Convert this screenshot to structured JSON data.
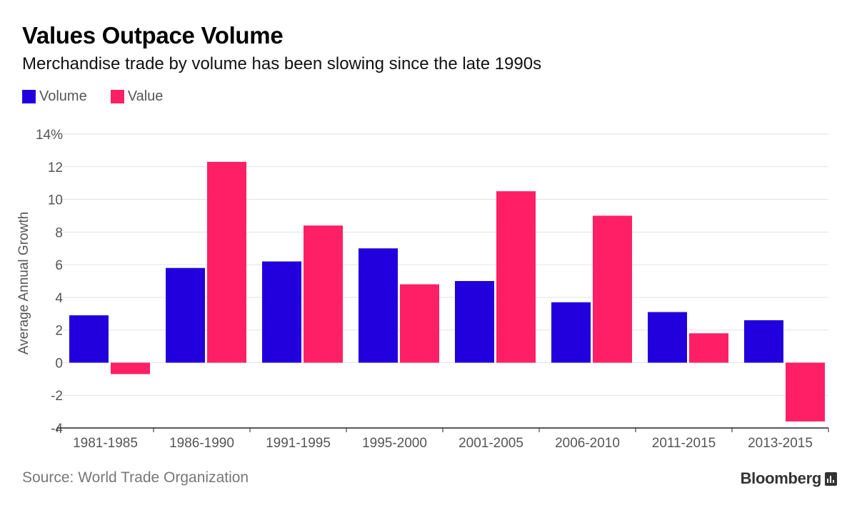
{
  "chart_data": {
    "type": "bar",
    "title": "Values Outpace Volume",
    "subtitle": "Merchandise trade by volume has been slowing since the late 1990s",
    "ylabel": "Average Annual Growth",
    "xlabel": "",
    "ylim": [
      -4,
      14
    ],
    "yticks": [
      -4,
      -2,
      0,
      2,
      4,
      6,
      8,
      10,
      12,
      14
    ],
    "ytick_labels": [
      "-4",
      "-2",
      "0",
      "2",
      "4",
      "6",
      "8",
      "10",
      "12",
      "14%"
    ],
    "grid": true,
    "legend_position": "top-left",
    "categories": [
      "1981-1985",
      "1986-1990",
      "1991-1995",
      "1995-2000",
      "2001-2005",
      "2006-2010",
      "2011-2015",
      "2013-2015"
    ],
    "series": [
      {
        "name": "Volume",
        "color": "#2200dd",
        "values": [
          2.9,
          5.8,
          6.2,
          7.0,
          5.0,
          3.7,
          3.1,
          2.6
        ]
      },
      {
        "name": "Value",
        "color": "#ff1f66",
        "values": [
          -0.7,
          12.3,
          8.4,
          4.8,
          10.5,
          9.0,
          1.8,
          -3.6
        ]
      }
    ],
    "source": "Source: World Trade Organization"
  },
  "brand": "Bloomberg"
}
